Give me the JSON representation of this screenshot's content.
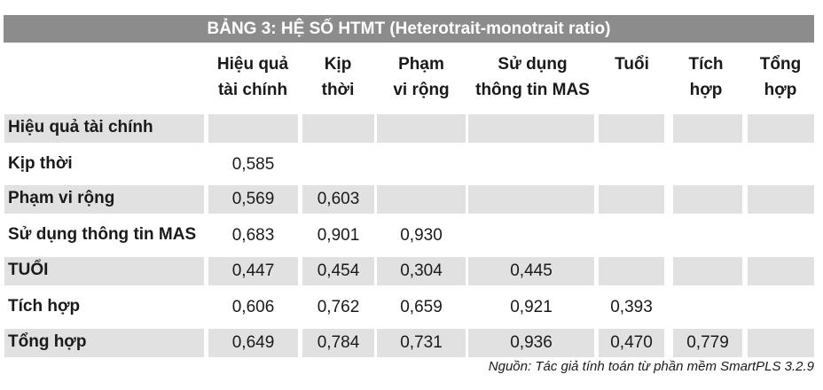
{
  "title": "BẢNG 3: HỆ SỐ HTMT (Heterotrait-monotrait ratio)",
  "columns": [
    [
      "Hiệu quả",
      "tài chính"
    ],
    [
      "Kịp",
      "thời"
    ],
    [
      "Phạm",
      "vi rộng"
    ],
    [
      "Sử dụng",
      "thông tin MAS"
    ],
    [
      "Tuổi",
      ""
    ],
    [
      "Tích",
      "hợp"
    ],
    [
      "Tổng",
      "hợp"
    ]
  ],
  "rows": [
    {
      "label": "Hiệu quả tài chính",
      "values": [
        "",
        "",
        "",
        "",
        "",
        "",
        ""
      ]
    },
    {
      "label": "Kịp thời",
      "values": [
        "0,585",
        "",
        "",
        "",
        "",
        "",
        ""
      ]
    },
    {
      "label": "Phạm vi rộng",
      "values": [
        "0,569",
        "0,603",
        "",
        "",
        "",
        "",
        ""
      ]
    },
    {
      "label": "Sử dụng thông tin MAS",
      "values": [
        "0,683",
        "0,901",
        "0,930",
        "",
        "",
        "",
        ""
      ]
    },
    {
      "label": "TUỔI",
      "values": [
        "0,447",
        "0,454",
        "0,304",
        "0,445",
        "",
        "",
        ""
      ]
    },
    {
      "label": "Tích hợp",
      "values": [
        "0,606",
        "0,762",
        "0,659",
        "0,921",
        "0,393",
        "",
        ""
      ]
    },
    {
      "label": "Tổng hợp",
      "values": [
        "0,649",
        "0,784",
        "0,731",
        "0,936",
        "0,470",
        "0,779",
        ""
      ]
    }
  ],
  "source": "Nguồn: Tác giả tính toán từ phần mềm SmartPLS 3.2.9",
  "colors": {
    "title_bg": "#8c8c8c",
    "shade": "#e1e1e1"
  }
}
